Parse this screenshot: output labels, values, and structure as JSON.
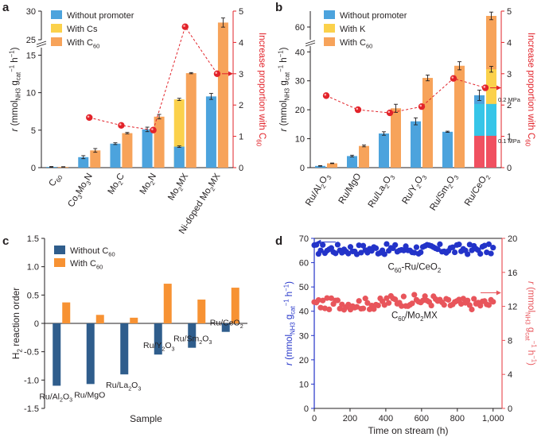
{
  "colors": {
    "blue": "#4ca3dd",
    "yellow": "#fbd14b",
    "orange": "#f7a35a",
    "red": "#e2232a",
    "cyan": "#36c5e8",
    "lightred": "#f05060",
    "navy": "#2f5d8c",
    "orange_c": "#f79233",
    "blue_dot": "#2333c9",
    "red_dot": "#e8555b",
    "axis": "#231f20"
  },
  "chart_data": [
    {
      "panel": "a",
      "type": "bar",
      "categories": [
        "C60",
        "Co3Mo3N",
        "Mo2C",
        "Mo2N",
        "Mo2MX",
        "Ni-doped Mo2MX"
      ],
      "category_labels": [
        [
          {
            "t": "C"
          },
          {
            "t": "60",
            "s": "sub"
          }
        ],
        [
          {
            "t": "Co"
          },
          {
            "t": "3",
            "s": "sub"
          },
          {
            "t": "Mo"
          },
          {
            "t": "3",
            "s": "sub"
          },
          {
            "t": "N"
          }
        ],
        [
          {
            "t": "Mo"
          },
          {
            "t": "2",
            "s": "sub"
          },
          {
            "t": "C"
          }
        ],
        [
          {
            "t": "Mo"
          },
          {
            "t": "2",
            "s": "sub"
          },
          {
            "t": "N"
          }
        ],
        [
          {
            "t": "Mo"
          },
          {
            "t": "2",
            "s": "sub"
          },
          {
            "t": "MX"
          }
        ],
        [
          {
            "t": "Ni-doped Mo"
          },
          {
            "t": "2",
            "s": "sub"
          },
          {
            "t": "MX"
          }
        ]
      ],
      "series": [
        {
          "name": "Without promoter",
          "values": [
            0.1,
            1.4,
            3.2,
            5.1,
            2.8,
            9.5
          ],
          "errors": [
            0.05,
            0.2,
            0.12,
            0.3,
            0.1,
            0.4
          ]
        },
        {
          "name": "With Cs",
          "values": [
            null,
            null,
            null,
            null,
            9.1,
            null
          ],
          "errors": [
            null,
            null,
            null,
            null,
            0.15,
            null
          ]
        },
        {
          "name": "With C60",
          "values": [
            0.1,
            2.3,
            4.6,
            6.8,
            12.6,
            28.0
          ],
          "errors": [
            0.03,
            0.25,
            0.1,
            0.3,
            0.08,
            0.8
          ]
        }
      ],
      "legend": [
        {
          "key": "blue",
          "parts": [
            {
              "t": "Without promoter"
            }
          ]
        },
        {
          "key": "yellow",
          "parts": [
            {
              "t": "With Cs"
            }
          ]
        },
        {
          "key": "orange",
          "parts": [
            {
              "t": "With C"
            },
            {
              "t": "60",
              "s": "sub"
            }
          ]
        }
      ],
      "increase_proportion": [
        null,
        1.6,
        1.35,
        1.2,
        4.5,
        3.0
      ],
      "ylim_lower": [
        0,
        16
      ],
      "ylim_upper": [
        25,
        30
      ],
      "yticks": [
        0,
        5,
        10,
        15,
        25,
        30
      ],
      "y2lim": [
        0,
        5
      ],
      "y2ticks": [
        0,
        1,
        2,
        3,
        4,
        5
      ],
      "ylabel": [
        {
          "t": "r",
          "s": "i"
        },
        {
          "t": " (mmol"
        },
        {
          "t": "NH3",
          "s": "sub"
        },
        {
          "t": " g"
        },
        {
          "t": "cat",
          "s": "sub"
        },
        {
          "t": "−1",
          "s": "sup"
        },
        {
          "t": " h"
        },
        {
          "t": "−1",
          "s": "sup"
        },
        {
          "t": ")"
        }
      ],
      "y2label": [
        {
          "t": "Increase proportion with C"
        },
        {
          "t": "60",
          "s": "sub"
        }
      ]
    },
    {
      "panel": "b",
      "type": "bar",
      "categories": [
        "Ru/Al2O3",
        "Ru/MgO",
        "Ru/La2O3",
        "Ru/Y2O3",
        "Ru/Sm2O3",
        "Ru/CeO2"
      ],
      "category_labels": [
        [
          {
            "t": "Ru/Al"
          },
          {
            "t": "2",
            "s": "sub"
          },
          {
            "t": "O"
          },
          {
            "t": "3",
            "s": "sub"
          }
        ],
        [
          {
            "t": "Ru/MgO"
          }
        ],
        [
          {
            "t": "Ru/La"
          },
          {
            "t": "2",
            "s": "sub"
          },
          {
            "t": "O"
          },
          {
            "t": "3",
            "s": "sub"
          }
        ],
        [
          {
            "t": "Ru/Y"
          },
          {
            "t": "2",
            "s": "sub"
          },
          {
            "t": "O"
          },
          {
            "t": "3",
            "s": "sub"
          }
        ],
        [
          {
            "t": "Ru/Sm"
          },
          {
            "t": "2",
            "s": "sub"
          },
          {
            "t": "O"
          },
          {
            "t": "3",
            "s": "sub"
          }
        ],
        [
          {
            "t": "Ru/CeO"
          },
          {
            "t": "2",
            "s": "sub"
          }
        ]
      ],
      "series": [
        {
          "name": "Without promoter",
          "values": [
            0.6,
            4.0,
            11.8,
            16.0,
            12.4,
            25.0
          ],
          "errors": [
            0.1,
            0.3,
            0.6,
            1.2,
            0.2,
            1.8
          ]
        },
        {
          "name": "With K",
          "values": [
            null,
            null,
            null,
            null,
            null,
            34.0
          ],
          "errors": [
            null,
            null,
            null,
            null,
            null,
            1.0
          ]
        },
        {
          "name": "With C60",
          "values": [
            1.5,
            7.5,
            20.5,
            31.0,
            35.2,
            63.5
          ],
          "errors": [
            0.1,
            0.3,
            1.4,
            1.0,
            1.4,
            1.2
          ]
        }
      ],
      "ruceo2_pressure_breakdown": [
        {
          "label": "0.1 MPa",
          "value": 11.0
        },
        {
          "label": "0.2 MPa",
          "value": 22.0
        }
      ],
      "legend": [
        {
          "key": "blue",
          "parts": [
            {
              "t": "Without promoter"
            }
          ]
        },
        {
          "key": "yellow",
          "parts": [
            {
              "t": "With K"
            }
          ]
        },
        {
          "key": "orange",
          "parts": [
            {
              "t": "With C"
            },
            {
              "t": "60",
              "s": "sub"
            }
          ]
        }
      ],
      "increase_proportion": [
        2.3,
        1.85,
        1.75,
        1.95,
        2.85,
        2.55
      ],
      "ylim_lower": [
        0,
        42
      ],
      "ylim_upper": [
        56,
        65
      ],
      "yticks": [
        0,
        10,
        20,
        30,
        40,
        60
      ],
      "y2lim": [
        0,
        5
      ],
      "y2ticks": [
        0,
        1,
        2,
        3,
        4,
        5
      ],
      "ylabel": [
        {
          "t": "r",
          "s": "i"
        },
        {
          "t": " (mmol"
        },
        {
          "t": "NH3",
          "s": "sub"
        },
        {
          "t": " g"
        },
        {
          "t": "cat",
          "s": "sub"
        },
        {
          "t": "−1",
          "s": "sup"
        },
        {
          "t": " h"
        },
        {
          "t": "−1",
          "s": "sup"
        },
        {
          "t": ")"
        }
      ],
      "y2label": [
        {
          "t": "Increase proportion with C"
        },
        {
          "t": "60",
          "s": "sub"
        }
      ]
    },
    {
      "panel": "c",
      "type": "bar",
      "categories": [
        "Ru/Al2O3",
        "Ru/MgO",
        "Ru/La2O3",
        "Ru/Y2O3",
        "Ru/Sm2O3",
        "Ru/CeO2"
      ],
      "category_labels": [
        [
          {
            "t": "Ru/Al"
          },
          {
            "t": "2",
            "s": "sub"
          },
          {
            "t": "O"
          },
          {
            "t": "3",
            "s": "sub"
          }
        ],
        [
          {
            "t": "Ru/MgO"
          }
        ],
        [
          {
            "t": "Ru/La"
          },
          {
            "t": "2",
            "s": "sub"
          },
          {
            "t": "O"
          },
          {
            "t": "3",
            "s": "sub"
          }
        ],
        [
          {
            "t": "Ru/Y"
          },
          {
            "t": "2",
            "s": "sub"
          },
          {
            "t": "O"
          },
          {
            "t": "3",
            "s": "sub"
          }
        ],
        [
          {
            "t": "Ru/Sm"
          },
          {
            "t": "2",
            "s": "sub"
          },
          {
            "t": "O"
          },
          {
            "t": "3",
            "s": "sub"
          }
        ],
        [
          {
            "t": "Ru/CeO"
          },
          {
            "t": "2",
            "s": "sub"
          }
        ]
      ],
      "series": [
        {
          "name": "Without C60",
          "values": [
            -1.1,
            -1.07,
            -0.9,
            -0.55,
            -0.43,
            -0.15
          ]
        },
        {
          "name": "With C60",
          "values": [
            0.37,
            0.15,
            0.1,
            0.7,
            0.42,
            0.63
          ]
        }
      ],
      "legend": [
        {
          "key": "navy",
          "parts": [
            {
              "t": "Without C"
            },
            {
              "t": "60",
              "s": "sub"
            }
          ]
        },
        {
          "key": "orange_c",
          "parts": [
            {
              "t": "With C"
            },
            {
              "t": "60",
              "s": "sub"
            }
          ]
        }
      ],
      "ylim": [
        -1.5,
        1.5
      ],
      "yticks": [
        -1.5,
        -1.0,
        -0.5,
        0.0,
        0.5,
        1.0,
        1.5
      ],
      "ytick_labels": [
        "-1.5",
        "-1.0",
        "-0.5",
        "0",
        "0.5",
        "1.0",
        "1.5"
      ],
      "xlabel": "Sample",
      "ylabel": [
        {
          "t": "H"
        },
        {
          "t": "2",
          "s": "sub"
        },
        {
          "t": " reaction order"
        }
      ]
    },
    {
      "panel": "d",
      "type": "scatter",
      "x_range": [
        0,
        1000
      ],
      "xlim": [
        0,
        1050
      ],
      "xticks": [
        0,
        200,
        400,
        600,
        800,
        1000
      ],
      "xtick_labels": [
        "0",
        "200",
        "400",
        "600",
        "800",
        "1,000"
      ],
      "xlabel": "Time on stream (h)",
      "series": [
        {
          "name": "C60-Ru/CeO2",
          "axis": "left",
          "mean": 65.5,
          "amplitude": 2.2,
          "n": 85,
          "label": [
            {
              "t": "C"
            },
            {
              "t": "60",
              "s": "sub"
            },
            {
              "t": "-Ru/CeO"
            },
            {
              "t": "2",
              "s": "sub"
            }
          ]
        },
        {
          "name": "C60/Mo2MX",
          "axis": "right",
          "mean": 12.3,
          "amplitude": 0.7,
          "n": 85,
          "label": [
            {
              "t": "C"
            },
            {
              "t": "60",
              "s": "sub"
            },
            {
              "t": "/Mo"
            },
            {
              "t": "2",
              "s": "sub"
            },
            {
              "t": "MX"
            }
          ]
        }
      ],
      "ylim": [
        0,
        70
      ],
      "yticks": [
        0,
        10,
        20,
        30,
        40,
        50,
        60,
        70
      ],
      "y2lim": [
        0,
        20
      ],
      "y2ticks": [
        0,
        4,
        8,
        12,
        16,
        20
      ],
      "ylabel": [
        {
          "t": "r",
          "s": "i"
        },
        {
          "t": " (mmol"
        },
        {
          "t": "NH3",
          "s": "sub"
        },
        {
          "t": " g"
        },
        {
          "t": "cat",
          "s": "sub"
        },
        {
          "t": "−1",
          "s": "sup"
        },
        {
          "t": " h"
        },
        {
          "t": "−1",
          "s": "sup"
        },
        {
          "t": ")"
        }
      ],
      "y2label": [
        {
          "t": "r",
          "s": "i"
        },
        {
          "t": " (mmol"
        },
        {
          "t": "NH3",
          "s": "sub"
        },
        {
          "t": " g"
        },
        {
          "t": "cat",
          "s": "sub"
        },
        {
          "t": "−1",
          "s": "sup"
        },
        {
          "t": " h"
        },
        {
          "t": "−1",
          "s": "sup"
        },
        {
          "t": ")"
        }
      ]
    }
  ],
  "panel_letters": [
    "a",
    "b",
    "c",
    "d"
  ]
}
